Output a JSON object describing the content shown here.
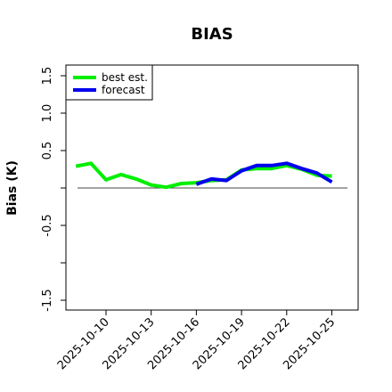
{
  "chart_data": {
    "type": "line",
    "title": "BIAS",
    "xlabel": "",
    "ylabel": "Bias (K)",
    "ylim": [
      -1.6,
      1.6
    ],
    "yticks": [
      -1.5,
      -1.0,
      -0.5,
      0.0,
      0.5,
      1.0,
      1.5
    ],
    "ytick_labels": [
      "-1.5",
      "",
      "-0.5",
      "",
      "0.5",
      "1.0",
      "1.5"
    ],
    "xlim": [
      "2025-10-07",
      "2025-10-26"
    ],
    "xticks": [
      "2025-10-10",
      "2025-10-13",
      "2025-10-16",
      "2025-10-19",
      "2025-10-22",
      "2025-10-25"
    ],
    "xtick_colors": [
      "#000000",
      "#000000",
      "#228B22",
      "#000000",
      "#000000",
      "#000000"
    ],
    "reference_line": 0,
    "grid": false,
    "legend": "top-left",
    "series": [
      {
        "name": "best est.",
        "color": "#00ee00",
        "x": [
          "2025-10-08",
          "2025-10-09",
          "2025-10-10",
          "2025-10-11",
          "2025-10-12",
          "2025-10-13",
          "2025-10-14",
          "2025-10-15",
          "2025-10-16",
          "2025-10-17",
          "2025-10-18",
          "2025-10-19",
          "2025-10-20",
          "2025-10-21",
          "2025-10-22",
          "2025-10-23",
          "2025-10-24",
          "2025-10-25"
        ],
        "values": [
          0.29,
          0.33,
          0.11,
          0.18,
          0.12,
          0.04,
          0.01,
          0.06,
          0.07,
          0.1,
          0.11,
          0.24,
          0.26,
          0.26,
          0.3,
          0.25,
          0.17,
          0.16
        ]
      },
      {
        "name": "forecast",
        "color": "#0000ee",
        "x": [
          "2025-10-16",
          "2025-10-17",
          "2025-10-18",
          "2025-10-19",
          "2025-10-20",
          "2025-10-21",
          "2025-10-22",
          "2025-10-23",
          "2025-10-24",
          "2025-10-25"
        ],
        "values": [
          0.05,
          0.12,
          0.1,
          0.23,
          0.3,
          0.3,
          0.33,
          0.26,
          0.2,
          0.08
        ]
      }
    ]
  }
}
